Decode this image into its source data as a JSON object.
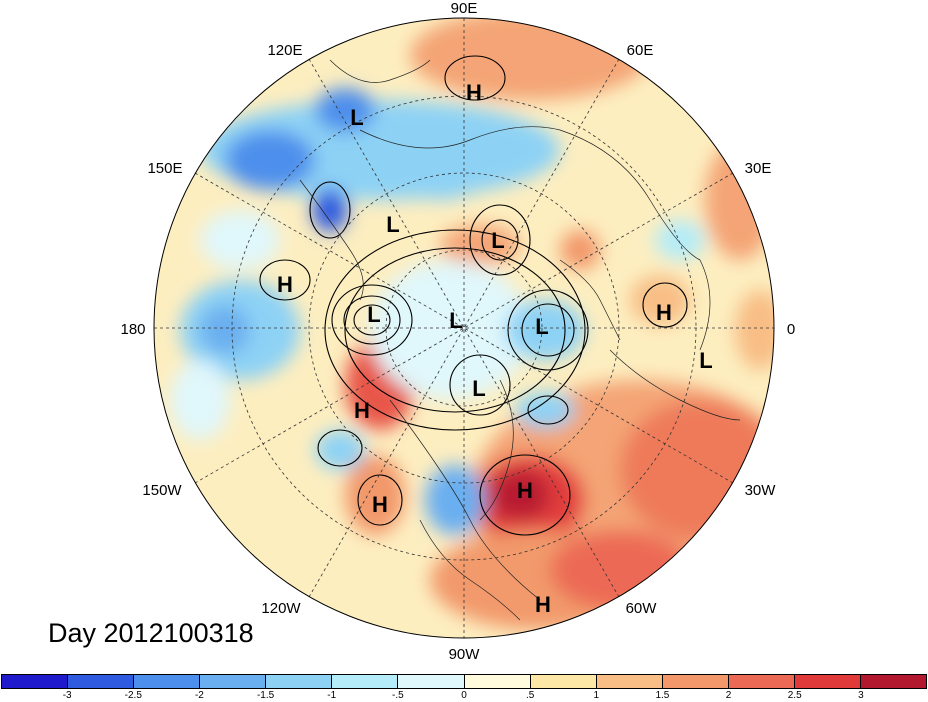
{
  "title_label": "Day 2012100318",
  "longitude_labels": {
    "top": "90E",
    "upper_left": "120E",
    "upper_right": "60E",
    "left_upper": "150E",
    "right_upper": "30E",
    "left": "180",
    "right": "0",
    "left_lower": "150W",
    "right_lower": "30W",
    "lower_left": "120W",
    "lower_right": "60W",
    "bottom": "90W"
  },
  "pressure_centers": [
    {
      "label": "H",
      "id": "h-siberia"
    },
    {
      "label": "L",
      "id": "l-east-siberia"
    },
    {
      "label": "L",
      "id": "l-central-siberia"
    },
    {
      "label": "L",
      "id": "l-kara"
    },
    {
      "label": "H",
      "id": "h-bering"
    },
    {
      "label": "L",
      "id": "l-beaufort"
    },
    {
      "label": "L",
      "id": "l-pole"
    },
    {
      "label": "L",
      "id": "l-greenland-sea"
    },
    {
      "label": "H",
      "id": "h-europe"
    },
    {
      "label": "L",
      "id": "l-atlantic"
    },
    {
      "label": "L",
      "id": "l-baffin"
    },
    {
      "label": "H",
      "id": "h-alaska"
    },
    {
      "label": "H",
      "id": "h-pacific-nw"
    },
    {
      "label": "H",
      "id": "h-east-us"
    },
    {
      "label": "H",
      "id": "h-caribbean"
    }
  ],
  "colorbar": {
    "colors": [
      "#1f1acb",
      "#2e5bdf",
      "#4d8fec",
      "#6aaff0",
      "#8dd2f5",
      "#b4ecf9",
      "#e0f7fb",
      "#fffbdc",
      "#fde7a6",
      "#f8be85",
      "#f2986a",
      "#ec6a55",
      "#e03a3a",
      "#b3192e"
    ],
    "ticks": [
      "-3",
      "-2.5",
      "-2",
      "-1.5",
      "-1",
      "-.5",
      "0",
      ".5",
      "1",
      "1.5",
      "2",
      "2.5",
      "3"
    ]
  }
}
